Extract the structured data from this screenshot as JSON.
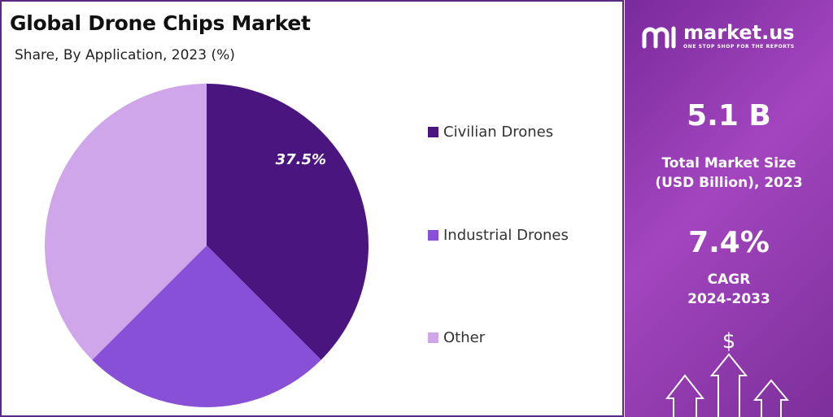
{
  "chart_data": {
    "type": "pie",
    "title": "Global Drone Chips Market",
    "subtitle": "Share, By Application, 2023 (%)",
    "slices": [
      {
        "name": "Civilian Drones",
        "value": 37.5,
        "label": "37.5%",
        "color": "#4b1580"
      },
      {
        "name": "Industrial Drones",
        "value": 25.0,
        "label": "",
        "color": "#8850d6"
      },
      {
        "name": "Other",
        "value": 37.5,
        "label": "",
        "color": "#d0a6ea"
      }
    ],
    "legend_position": "right"
  },
  "sidebar": {
    "brand_name": "market.us",
    "brand_tagline": "ONE STOP SHOP FOR THE REPORTS",
    "market_size_value": "5.1 B",
    "market_size_label_line1": "Total Market Size",
    "market_size_label_line2": "(USD Billion), 2023",
    "cagr_value": "7.4%",
    "cagr_label_line1": "CAGR",
    "cagr_label_line2": "2024-2033",
    "currency_symbol": "$",
    "accent_color": "#9b3fbf"
  }
}
